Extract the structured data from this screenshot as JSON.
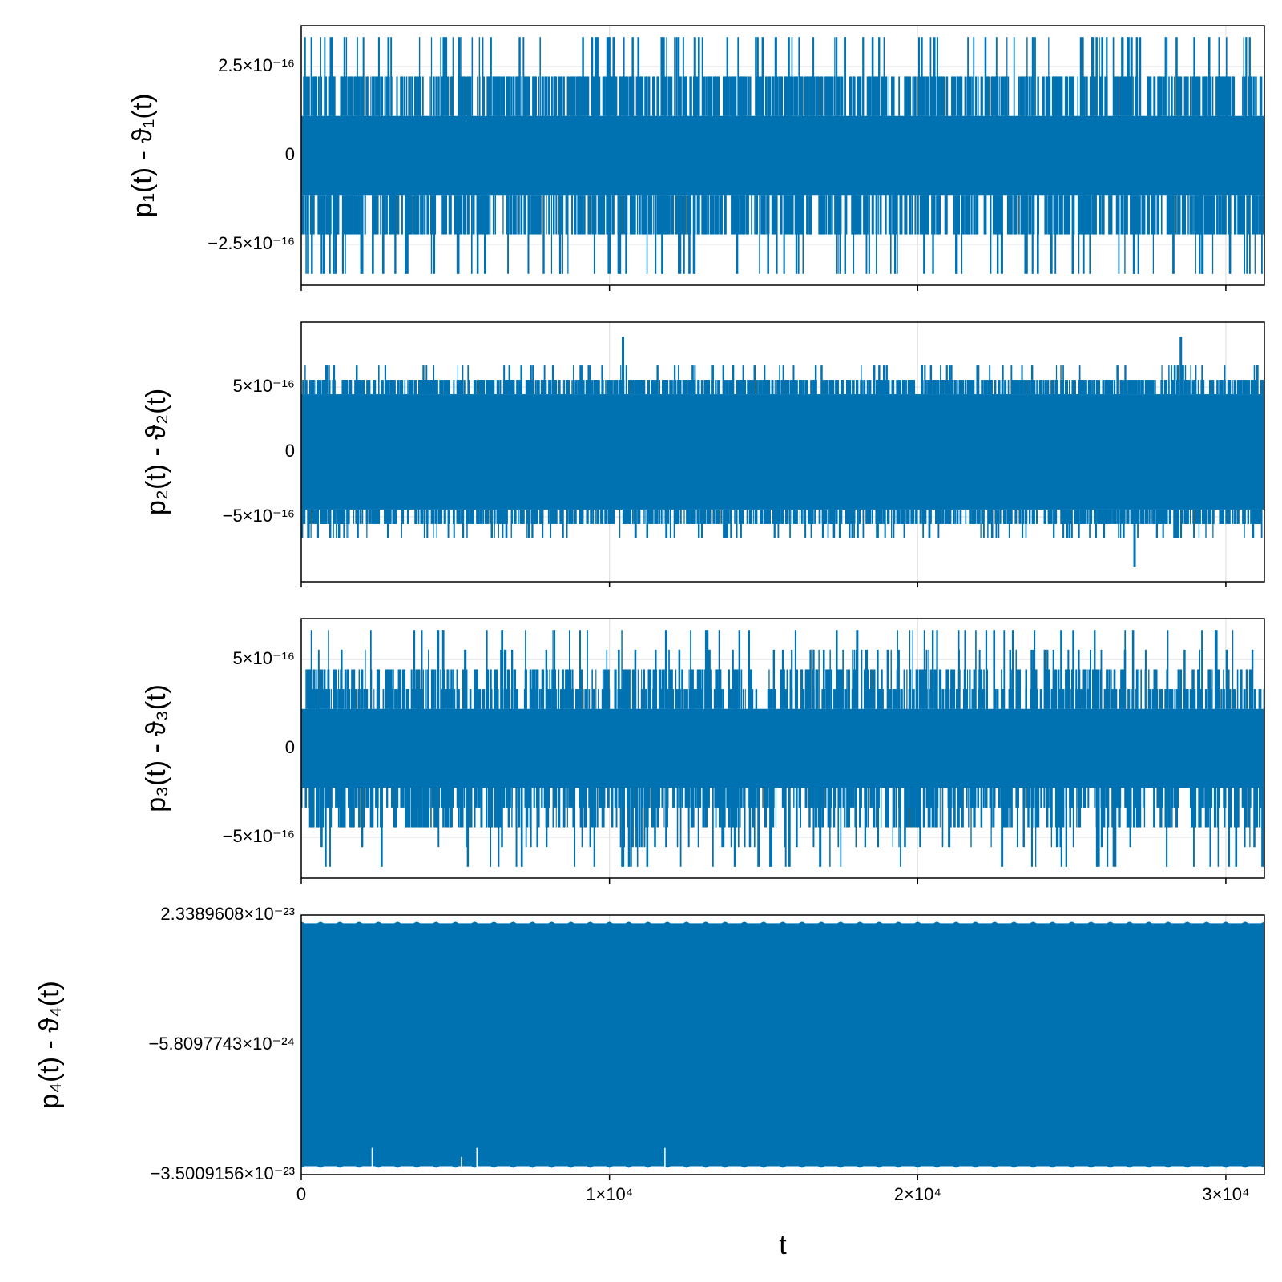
{
  "chart_data": [
    {
      "type": "line",
      "ylabel": "p₁(t) - ϑ₁(t)",
      "xlim": [
        0,
        31250
      ],
      "ylim": [
        -3.65e-16,
        3.65e-16
      ],
      "yticks": [
        {
          "value": 2.5e-16,
          "label": "2.5×10⁻¹⁶"
        },
        {
          "value": 0,
          "label": "0"
        },
        {
          "value": -2.5e-16,
          "label": "−2.5×10⁻¹⁶"
        }
      ],
      "grid": true,
      "series": [
        {
          "color": "#0072b2",
          "band": [
            -1.11e-16,
            1.11e-16
          ],
          "frequent_levels": [
            2.22e-16,
            -2.22e-16
          ],
          "rare_levels": [
            3.33e-16,
            -3.33e-16
          ]
        }
      ],
      "x_spikes": [
        {
          "x": 700,
          "value": -3.33e-16
        },
        {
          "x": 3400,
          "value": -3.33e-16
        },
        {
          "x": 9900,
          "value": 3.33e-16
        },
        {
          "x": 10100,
          "value": 3.33e-16
        },
        {
          "x": 10300,
          "value": -3.33e-16
        },
        {
          "x": 12200,
          "value": 3.33e-16
        },
        {
          "x": 14100,
          "value": -3.33e-16
        },
        {
          "x": 20500,
          "value": 3.33e-16
        },
        {
          "x": 24300,
          "value": -3.33e-16
        },
        {
          "x": 26600,
          "value": 3.33e-16
        },
        {
          "x": 26800,
          "value": 3.33e-16
        },
        {
          "x": 26900,
          "value": 3.33e-16
        },
        {
          "x": 29200,
          "value": -3.33e-16
        }
      ]
    },
    {
      "type": "line",
      "ylabel": "p₂(t) - ϑ₂(t)",
      "xlim": [
        0,
        31250
      ],
      "ylim": [
        -1e-15,
        1e-15
      ],
      "yticks": [
        {
          "value": 5e-16,
          "label": "5×10⁻¹⁶"
        },
        {
          "value": 0,
          "label": "0"
        },
        {
          "value": -5e-16,
          "label": "−5×10⁻¹⁶"
        }
      ],
      "grid": true,
      "series": [
        {
          "color": "#0072b2",
          "band": [
            -4.44e-16,
            4.44e-16
          ],
          "frequent_levels": [
            5.55e-16,
            -5.55e-16
          ],
          "rare_levels": [
            6.66e-16,
            -6.66e-16
          ]
        }
      ],
      "x_spikes": [
        {
          "x": 10400,
          "value": 8.88e-16
        },
        {
          "x": 28500,
          "value": 8.88e-16
        },
        {
          "x": 27000,
          "value": -8.88e-16
        }
      ]
    },
    {
      "type": "line",
      "ylabel": "p₃(t) - ϑ₃(t)",
      "xlim": [
        0,
        31250
      ],
      "ylim": [
        -7.3e-16,
        7.3e-16
      ],
      "yticks": [
        {
          "value": 5e-16,
          "label": "5×10⁻¹⁶"
        },
        {
          "value": 0,
          "label": "0"
        },
        {
          "value": -5e-16,
          "label": "−5×10⁻¹⁶"
        }
      ],
      "grid": true,
      "series": [
        {
          "color": "#0072b2",
          "band": [
            -2.22e-16,
            2.22e-16
          ],
          "frequent_levels": [
            3.33e-16,
            -3.33e-16,
            4.44e-16,
            -4.44e-16
          ],
          "rare_levels": [
            5.55e-16,
            -5.55e-16,
            6.66e-16,
            -6.66e-16
          ]
        }
      ],
      "x_spikes": [
        {
          "x": 4400,
          "value": 6.66e-16
        },
        {
          "x": 11800,
          "value": 6.66e-16
        },
        {
          "x": 13100,
          "value": 6.66e-16
        },
        {
          "x": 18000,
          "value": 6.66e-16
        },
        {
          "x": 10600,
          "value": -6.66e-16
        },
        {
          "x": 14800,
          "value": -6.66e-16
        },
        {
          "x": 15800,
          "value": -6.66e-16
        },
        {
          "x": 16800,
          "value": -6.66e-16
        },
        {
          "x": 22700,
          "value": -6.66e-16
        },
        {
          "x": 31150,
          "value": -6.66e-16
        }
      ]
    },
    {
      "type": "line",
      "ylabel": "p₄(t) - ϑ₄(t)",
      "xlabel": "t",
      "xlim": [
        0,
        31250
      ],
      "ylim": [
        -3.5009156e-23,
        2.3389608e-23
      ],
      "yticks": [
        {
          "value": 2.3389608e-23,
          "label": "2.3389608×10⁻²³"
        },
        {
          "value": -5.8097743e-24,
          "label": "−5.8097743×10⁻²⁴"
        },
        {
          "value": -3.5009156e-23,
          "label": "−3.5009156×10⁻²³"
        }
      ],
      "xticks": [
        {
          "value": 0,
          "label": "0"
        },
        {
          "value": 10000,
          "label": "1×10⁴"
        },
        {
          "value": 20000,
          "label": "2×10⁴"
        },
        {
          "value": 30000,
          "label": "3×10⁴"
        }
      ],
      "grid": true,
      "series": [
        {
          "color": "#0072b2",
          "envelope_top": 2.26e-23,
          "envelope_bottom": -3.42e-23,
          "oscillation_periods": 50
        }
      ],
      "x_spikes": [
        {
          "x": 2300,
          "value": -2.9e-23
        },
        {
          "x": 5700,
          "value": -2.9e-23
        },
        {
          "x": 11800,
          "value": -2.9e-23
        },
        {
          "x": 5200,
          "value": -3.1e-23
        }
      ]
    }
  ]
}
